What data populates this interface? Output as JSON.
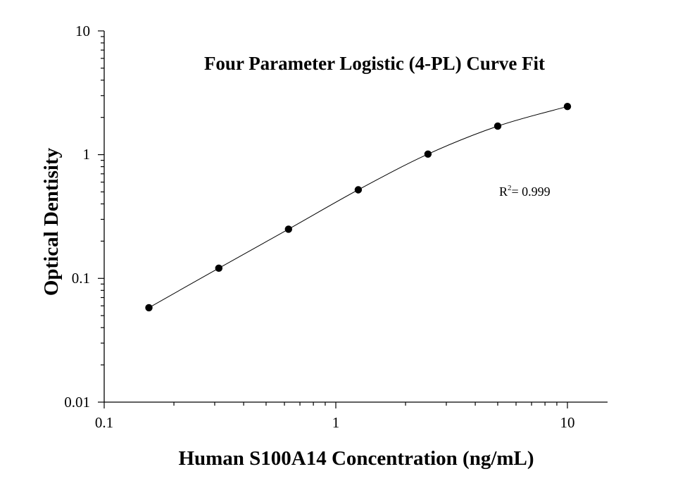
{
  "chart_data": {
    "type": "scatter",
    "title": "Four Parameter Logistic (4-PL) Curve Fit",
    "xlabel": "Human S100A14 Concentration (ng/mL)",
    "ylabel": "Optical Dentisity",
    "x_scale": "log",
    "y_scale": "log",
    "xlim": [
      0.1,
      15
    ],
    "ylim": [
      0.01,
      10
    ],
    "x_ticks": [
      "0.1",
      "1",
      "10"
    ],
    "y_ticks": [
      "0.01",
      "0.1",
      "1",
      "10"
    ],
    "grid": false,
    "points": [
      {
        "x": 0.156,
        "y": 0.058
      },
      {
        "x": 0.3125,
        "y": 0.121
      },
      {
        "x": 0.625,
        "y": 0.25
      },
      {
        "x": 1.25,
        "y": 0.52
      },
      {
        "x": 2.5,
        "y": 1.01
      },
      {
        "x": 5,
        "y": 1.7
      },
      {
        "x": 10,
        "y": 2.45
      }
    ],
    "annotation": {
      "r2_symbol": "R",
      "r2_superscript": "2",
      "r2_value": "= 0.999"
    }
  }
}
